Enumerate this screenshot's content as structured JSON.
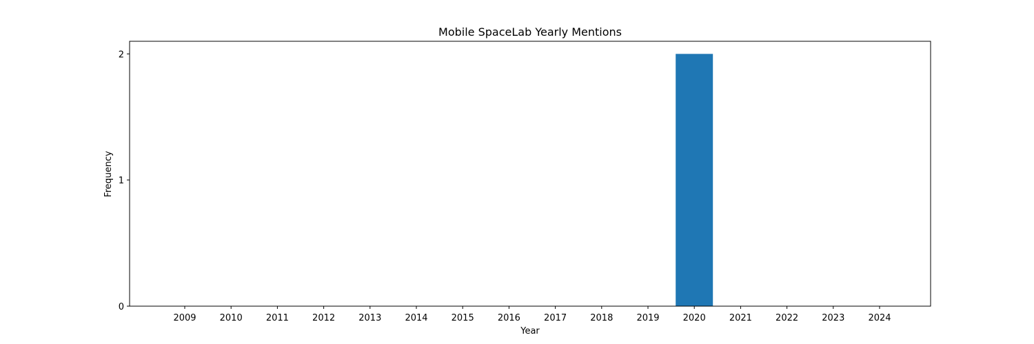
{
  "chart_data": {
    "type": "bar",
    "title": "Mobile SpaceLab Yearly Mentions",
    "xlabel": "Year",
    "ylabel": "Frequency",
    "categories": [
      "2009",
      "2010",
      "2011",
      "2012",
      "2013",
      "2014",
      "2015",
      "2016",
      "2017",
      "2018",
      "2019",
      "2020",
      "2021",
      "2022",
      "2023",
      "2024"
    ],
    "values": [
      0,
      0,
      0,
      0,
      0,
      0,
      0,
      0,
      0,
      0,
      0,
      2,
      0,
      0,
      0,
      0
    ],
    "yticks": [
      0,
      1,
      2
    ],
    "ylim": [
      0,
      2.1
    ],
    "grid": false,
    "bar_color": "#1f77b4"
  }
}
